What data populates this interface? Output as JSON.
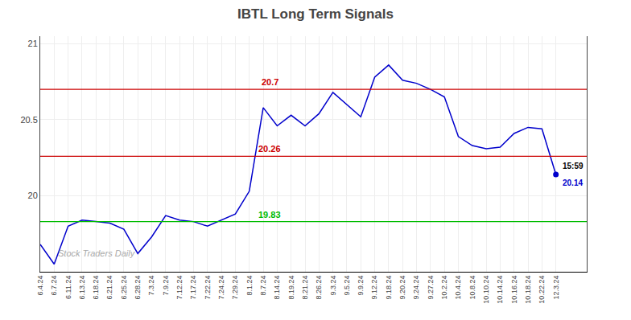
{
  "chart_data": {
    "type": "line",
    "title": "IBTL Long Term Signals",
    "categories": [
      "6.4.24",
      "6.7.24",
      "6.11.24",
      "6.13.24",
      "6.18.24",
      "6.21.24",
      "6.25.24",
      "6.28.24",
      "7.3.24",
      "7.9.24",
      "7.12.24",
      "7.17.24",
      "7.22.24",
      "7.24.24",
      "7.29.24",
      "8.1.24",
      "8.7.24",
      "8.14.24",
      "8.19.24",
      "8.21.24",
      "8.26.24",
      "9.3.24",
      "9.5.24",
      "9.9.24",
      "9.12.24",
      "9.18.24",
      "9.20.24",
      "9.24.24",
      "9.27.24",
      "10.2.24",
      "10.4.24",
      "10.8.24",
      "10.10.24",
      "10.14.24",
      "10.16.24",
      "10.18.24",
      "10.22.24",
      "12.3.24"
    ],
    "values": [
      19.68,
      19.55,
      19.8,
      19.84,
      19.83,
      19.82,
      19.78,
      19.62,
      19.73,
      19.87,
      19.84,
      19.83,
      19.8,
      19.84,
      19.88,
      20.03,
      20.58,
      20.46,
      20.53,
      20.46,
      20.54,
      20.68,
      20.6,
      20.52,
      20.78,
      20.86,
      20.76,
      20.74,
      20.7,
      20.65,
      20.39,
      20.33,
      20.31,
      20.32,
      20.41,
      20.45,
      20.44,
      20.14
    ],
    "color": "#0000cc",
    "reference_lines": [
      {
        "value": 20.7,
        "label": "20.7",
        "color": "#cc0000"
      },
      {
        "value": 20.26,
        "label": "20.26",
        "color": "#cc0000"
      },
      {
        "value": 19.83,
        "label": "19.83",
        "color": "#00bb00"
      }
    ],
    "point_annotation": [
      "15:59",
      "20.14"
    ],
    "watermark": "Stock Traders Daily",
    "ylim": [
      19.5,
      21.05
    ],
    "yticks": [
      20,
      20.5,
      21
    ],
    "grid": true
  }
}
